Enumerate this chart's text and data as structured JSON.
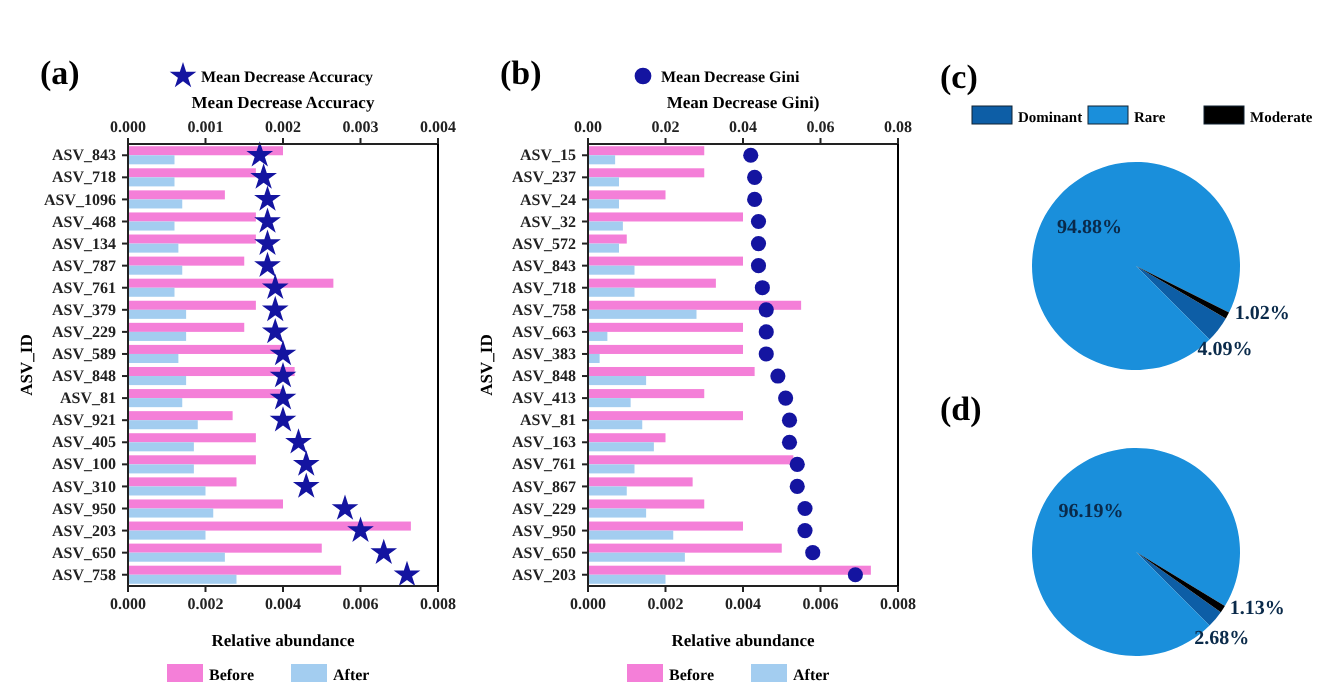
{
  "chart_data": [
    {
      "type": "bar",
      "orientation": "horizontal",
      "title": "(a)",
      "xlabel": "Relative abundance",
      "ylabel": "ASV_ID",
      "x2label": "Mean Decrease Accuracy",
      "legend": "bottom",
      "marker": "star",
      "categories": [
        "ASV_843",
        "ASV_718",
        "ASV_1096",
        "ASV_468",
        "ASV_134",
        "ASV_787",
        "ASV_761",
        "ASV_379",
        "ASV_229",
        "ASV_589",
        "ASV_848",
        "ASV_81",
        "ASV_921",
        "ASV_405",
        "ASV_100",
        "ASV_310",
        "ASV_950",
        "ASV_203",
        "ASV_650",
        "ASV_758"
      ],
      "xlim": [
        0,
        0.008
      ],
      "xticks": [
        {
          "value": 0,
          "label": "0.000"
        },
        {
          "value": 0.002,
          "label": "0.002"
        },
        {
          "value": 0.004,
          "label": "0.004"
        },
        {
          "value": 0.006,
          "label": "0.006"
        },
        {
          "value": 0.008,
          "label": "0.008"
        }
      ],
      "x2lim": [
        0,
        0.004
      ],
      "x2ticks": [
        {
          "value": 0,
          "label": "0.000"
        },
        {
          "value": 0.001,
          "label": "0.001"
        },
        {
          "value": 0.002,
          "label": "0.002"
        },
        {
          "value": 0.003,
          "label": "0.003"
        },
        {
          "value": 0.004,
          "label": "0.004"
        }
      ],
      "series": [
        {
          "name": "Before",
          "type": "bar",
          "color": "#f47fd8",
          "values": [
            0.004,
            0.0033,
            0.0025,
            0.0033,
            0.0033,
            0.003,
            0.0053,
            0.0033,
            0.003,
            0.004,
            0.0043,
            0.004,
            0.0027,
            0.0033,
            0.0033,
            0.0028,
            0.004,
            0.0073,
            0.005,
            0.0055
          ]
        },
        {
          "name": "After",
          "type": "bar",
          "color": "#a3cdf0",
          "values": [
            0.0012,
            0.0012,
            0.0014,
            0.0012,
            0.0013,
            0.0014,
            0.0012,
            0.0015,
            0.0015,
            0.0013,
            0.0015,
            0.0014,
            0.0018,
            0.0017,
            0.0017,
            0.002,
            0.0022,
            0.002,
            0.0025,
            0.0028
          ]
        },
        {
          "name": "Mean Decrease Accuracy",
          "type": "scatter",
          "axis": "x2",
          "color": "#1414a0",
          "values": [
            0.0017,
            0.00175,
            0.0018,
            0.0018,
            0.0018,
            0.0018,
            0.0019,
            0.0019,
            0.0019,
            0.002,
            0.002,
            0.002,
            0.002,
            0.0022,
            0.0023,
            0.0023,
            0.0028,
            0.003,
            0.0033,
            0.0036
          ]
        }
      ]
    },
    {
      "type": "bar",
      "orientation": "horizontal",
      "title": "(b)",
      "xlabel": "Relative abundance",
      "ylabel": "ASV_ID",
      "x2label": "Mean Decrease Gini)",
      "legend": "bottom",
      "marker": "circle",
      "categories": [
        "ASV_15",
        "ASV_237",
        "ASV_24",
        "ASV_32",
        "ASV_572",
        "ASV_843",
        "ASV_718",
        "ASV_758",
        "ASV_663",
        "ASV_383",
        "ASV_848",
        "ASV_413",
        "ASV_81",
        "ASV_163",
        "ASV_761",
        "ASV_867",
        "ASV_229",
        "ASV_950",
        "ASV_650",
        "ASV_203"
      ],
      "xlim": [
        0,
        0.008
      ],
      "xticks": [
        {
          "value": 0,
          "label": "0.000"
        },
        {
          "value": 0.002,
          "label": "0.002"
        },
        {
          "value": 0.004,
          "label": "0.004"
        },
        {
          "value": 0.006,
          "label": "0.006"
        },
        {
          "value": 0.008,
          "label": "0.008"
        }
      ],
      "x2lim": [
        0,
        0.08
      ],
      "x2ticks": [
        {
          "value": 0,
          "label": "0.00"
        },
        {
          "value": 0.02,
          "label": "0.02"
        },
        {
          "value": 0.04,
          "label": "0.04"
        },
        {
          "value": 0.06,
          "label": "0.06"
        },
        {
          "value": 0.08,
          "label": "0.08"
        }
      ],
      "series": [
        {
          "name": "Before",
          "type": "bar",
          "color": "#f47fd8",
          "values": [
            0.003,
            0.003,
            0.002,
            0.004,
            0.001,
            0.004,
            0.0033,
            0.0055,
            0.004,
            0.004,
            0.0043,
            0.003,
            0.004,
            0.002,
            0.0053,
            0.0027,
            0.003,
            0.004,
            0.005,
            0.0073
          ]
        },
        {
          "name": "After",
          "type": "bar",
          "color": "#a3cdf0",
          "values": [
            0.0007,
            0.0008,
            0.0008,
            0.0009,
            0.0008,
            0.0012,
            0.0012,
            0.0028,
            0.0005,
            0.0003,
            0.0015,
            0.0011,
            0.0014,
            0.0017,
            0.0012,
            0.001,
            0.0015,
            0.0022,
            0.0025,
            0.002
          ]
        },
        {
          "name": "Mean Decrease Gini",
          "type": "scatter",
          "axis": "x2",
          "color": "#1414a0",
          "values": [
            0.042,
            0.043,
            0.043,
            0.044,
            0.044,
            0.044,
            0.045,
            0.046,
            0.046,
            0.046,
            0.049,
            0.051,
            0.052,
            0.052,
            0.054,
            0.054,
            0.056,
            0.056,
            0.058,
            0.069
          ]
        }
      ]
    },
    {
      "type": "pie",
      "title": "(c)",
      "legend": "top",
      "categories": [
        "Dominant",
        "Rare",
        "Moderate"
      ],
      "values": [
        4.09,
        94.88,
        1.02
      ],
      "colors": [
        "#0d5ea6",
        "#1a8fdb",
        "#000000"
      ],
      "value_labels": [
        "4.09%",
        "94.88%",
        "1.02%"
      ]
    },
    {
      "type": "pie",
      "title": "(d)",
      "categories": [
        null,
        null,
        null
      ],
      "values": [
        2.68,
        96.19,
        1.13
      ],
      "colors": [
        "#0d5ea6",
        "#1a8fdb",
        "#000000"
      ],
      "value_labels": [
        "2.68%",
        "96.19%",
        "1.13%"
      ]
    }
  ]
}
